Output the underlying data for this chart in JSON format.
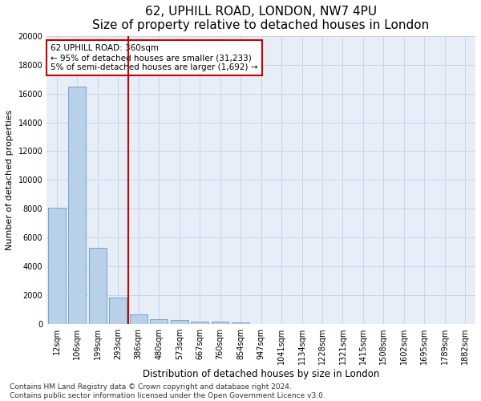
{
  "title": "62, UPHILL ROAD, LONDON, NW7 4PU",
  "subtitle": "Size of property relative to detached houses in London",
  "xlabel": "Distribution of detached houses by size in London",
  "ylabel": "Number of detached properties",
  "categories": [
    "12sqm",
    "106sqm",
    "199sqm",
    "293sqm",
    "386sqm",
    "480sqm",
    "573sqm",
    "667sqm",
    "760sqm",
    "854sqm",
    "947sqm",
    "1041sqm",
    "1134sqm",
    "1228sqm",
    "1321sqm",
    "1415sqm",
    "1508sqm",
    "1602sqm",
    "1695sqm",
    "1789sqm",
    "1882sqm"
  ],
  "values": [
    8100,
    16500,
    5300,
    1850,
    700,
    350,
    280,
    200,
    175,
    100,
    0,
    0,
    0,
    0,
    0,
    0,
    0,
    0,
    0,
    0,
    0
  ],
  "bar_color": "#b8d0e8",
  "bar_edge_color": "#6699cc",
  "vline_color": "#cc0000",
  "vline_x_index": 3.5,
  "annotation_text": "62 UPHILL ROAD: 360sqm\n← 95% of detached houses are smaller (31,233)\n5% of semi-detached houses are larger (1,692) →",
  "annotation_box_color": "#ffffff",
  "annotation_box_edge": "#cc0000",
  "ylim": [
    0,
    20000
  ],
  "yticks": [
    0,
    2000,
    4000,
    6000,
    8000,
    10000,
    12000,
    14000,
    16000,
    18000,
    20000
  ],
  "grid_color": "#c8d4e8",
  "bg_color": "#e8eef8",
  "footer_line1": "Contains HM Land Registry data © Crown copyright and database right 2024.",
  "footer_line2": "Contains public sector information licensed under the Open Government Licence v3.0.",
  "title_fontsize": 11,
  "subtitle_fontsize": 9,
  "xlabel_fontsize": 8.5,
  "ylabel_fontsize": 8,
  "tick_fontsize": 7,
  "footer_fontsize": 6.5,
  "annotation_fontsize": 7.5
}
